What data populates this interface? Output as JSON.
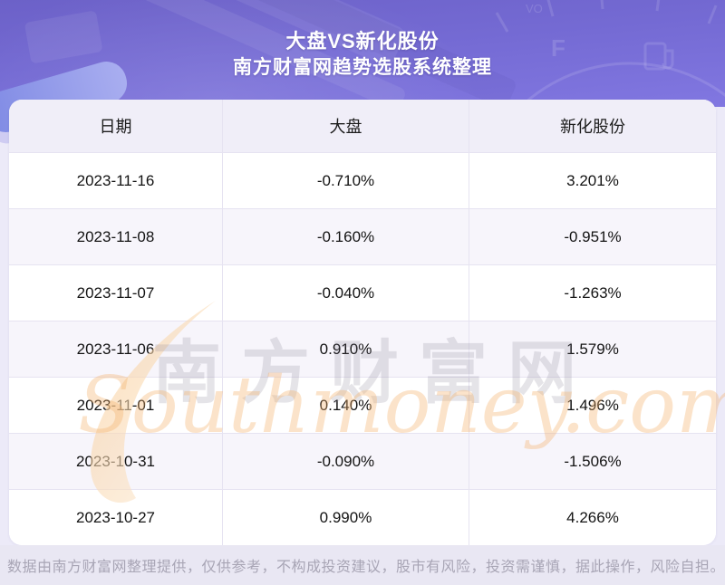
{
  "header": {
    "title": "大盘VS新化股份",
    "subtitle": "南方财富网趋势选股系统整理"
  },
  "chart_data": {
    "type": "table",
    "title": "大盘VS新化股份",
    "subtitle": "南方财富网趋势选股系统整理",
    "columns": [
      "日期",
      "大盘",
      "新化股份"
    ],
    "rows": [
      [
        "2023-11-16",
        "-0.710%",
        "3.201%"
      ],
      [
        "2023-11-08",
        "-0.160%",
        "-0.951%"
      ],
      [
        "2023-11-07",
        "-0.040%",
        "-1.263%"
      ],
      [
        "2023-11-06",
        "0.910%",
        "1.579%"
      ],
      [
        "2023-11-01",
        "0.140%",
        "1.496%"
      ],
      [
        "2023-10-31",
        "-0.090%",
        "-1.506%"
      ],
      [
        "2023-10-27",
        "0.990%",
        "4.266%"
      ]
    ]
  },
  "watermark": {
    "cn": "南方财富网",
    "en": "Southmoney.com"
  },
  "footer": {
    "disclaimer": "数据由南方财富网整理提供，仅供参考，不构成投资建议，股市有风险，投资需谨慎，据此操作，风险自担。"
  },
  "colors": {
    "hero_purple_top": "#6c61c8",
    "hero_purple_bottom": "#8177e1",
    "title_text": "#ffffff",
    "table_header_bg": "#f0eef8",
    "row_bg": "#ffffff",
    "row_alt_bg": "#f7f5fb",
    "divider": "#e6e3f1",
    "cell_text": "#131313",
    "footer_bg": "#e9e7f3",
    "footer_text": "#a8a5b5",
    "watermark_orange": "#f3b16c",
    "watermark_gray": "#7d788c"
  }
}
